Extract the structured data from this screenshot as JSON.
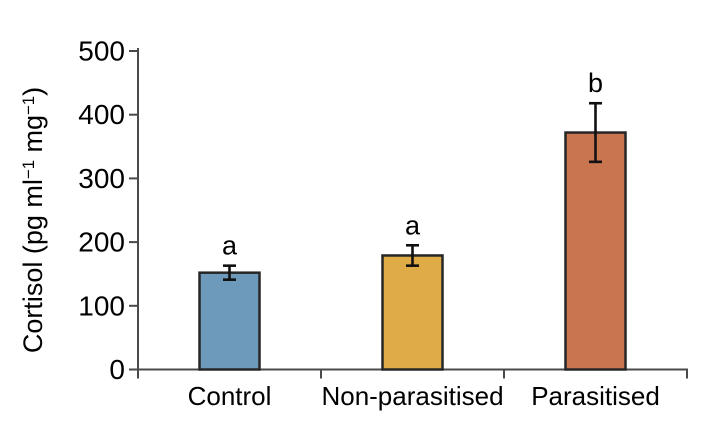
{
  "figure": {
    "background": "#ffffff",
    "ylabel_parts": {
      "prefix": "Cortisol (pg ml",
      "sup1": "−1",
      "mid": " mg",
      "sup2": "−1",
      "suffix": ")"
    }
  },
  "chart_data": {
    "type": "bar",
    "title": "",
    "xlabel": "",
    "ylabel": "Cortisol (pg ml−1 mg−1)",
    "categories": [
      "Control",
      "Non-parasitised",
      "Parasitised"
    ],
    "values": [
      152,
      179,
      372
    ],
    "errors": [
      11,
      16,
      46
    ],
    "sig_letters": [
      "a",
      "a",
      "b"
    ],
    "bar_colors": [
      "#6d99ba",
      "#dfab47",
      "#c97550"
    ],
    "bar_border_color": "#262626",
    "error_bar_color": "#111111",
    "axis_color": "#4a4a4a",
    "ylim": [
      0,
      500
    ],
    "yticks": [
      0,
      100,
      200,
      300,
      400,
      500
    ],
    "grid": false,
    "legend": null
  }
}
